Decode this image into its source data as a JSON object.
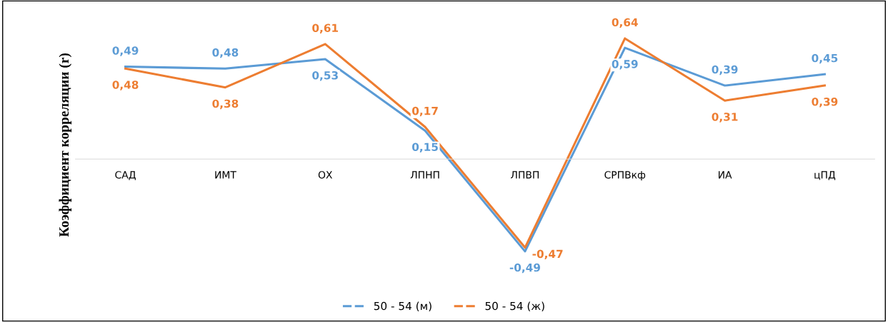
{
  "chart_data": {
    "type": "line",
    "ylabel": "Коэффициент корреляции (r)",
    "categories": [
      "САД",
      "ИМТ",
      "ОХ",
      "ЛПНП",
      "ЛПВП",
      "СРПВкф",
      "ИА",
      "цПД"
    ],
    "series": [
      {
        "name": "50 - 54 (м)",
        "color": "#5b9bd5",
        "values": [
          0.49,
          0.48,
          0.53,
          0.15,
          -0.49,
          0.59,
          0.39,
          0.45
        ],
        "value_labels": [
          "0,49",
          "0,48",
          "0,53",
          "0,15",
          "-0,49",
          "0,59",
          "0,39",
          "0,45"
        ]
      },
      {
        "name": "50 - 54 (ж)",
        "color": "#ed7d31",
        "values": [
          0.48,
          0.38,
          0.61,
          0.17,
          -0.47,
          0.64,
          0.31,
          0.39
        ],
        "value_labels": [
          "0,48",
          "0,38",
          "0,61",
          "0,17",
          "-0,47",
          "0,64",
          "0,31",
          "0,39"
        ]
      }
    ],
    "legend": "bottom",
    "grid": false,
    "marker": "none",
    "line_style": "solid",
    "tick_labels": "x"
  }
}
